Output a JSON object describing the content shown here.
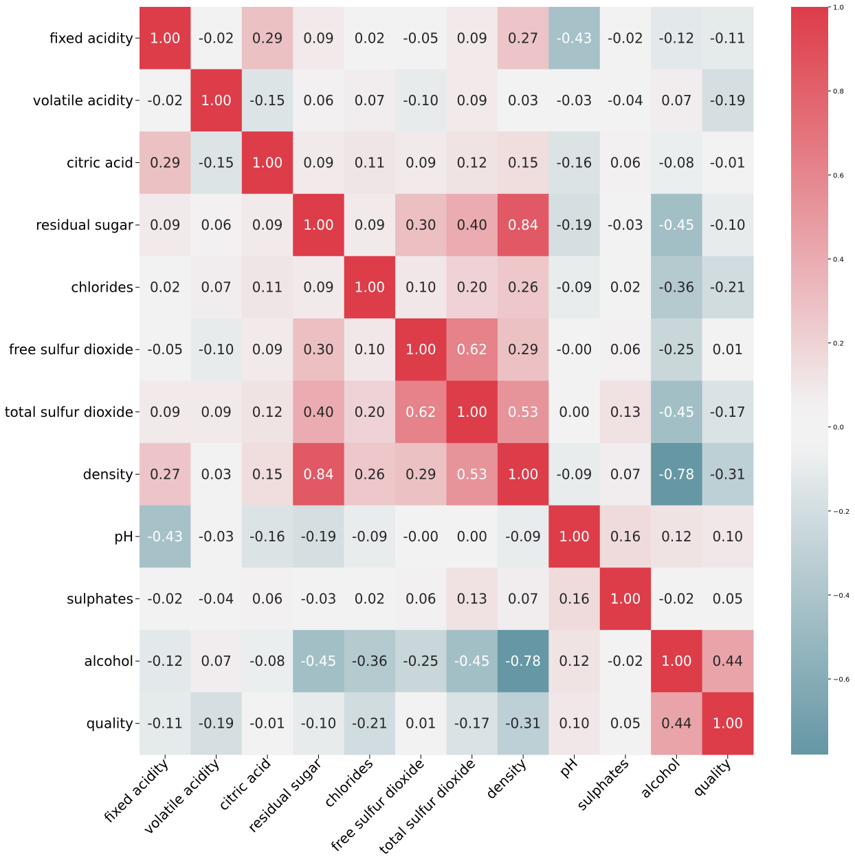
{
  "chart_data": {
    "type": "heatmap",
    "title": "",
    "xlabel": "",
    "ylabel": "",
    "labels": [
      "fixed acidity",
      "volatile acidity",
      "citric acid",
      "residual sugar",
      "chlorides",
      "free sulfur dioxide",
      "total sulfur dioxide",
      "density",
      "pH",
      "sulphates",
      "alcohol",
      "quality"
    ],
    "values": [
      [
        1.0,
        -0.02,
        0.29,
        0.09,
        0.02,
        -0.05,
        0.09,
        0.27,
        -0.43,
        -0.02,
        -0.12,
        -0.11
      ],
      [
        -0.02,
        1.0,
        -0.15,
        0.06,
        0.07,
        -0.1,
        0.09,
        0.03,
        -0.03,
        -0.04,
        0.07,
        -0.19
      ],
      [
        0.29,
        -0.15,
        1.0,
        0.09,
        0.11,
        0.09,
        0.12,
        0.15,
        -0.16,
        0.06,
        -0.08,
        -0.01
      ],
      [
        0.09,
        0.06,
        0.09,
        1.0,
        0.09,
        0.3,
        0.4,
        0.84,
        -0.19,
        -0.03,
        -0.45,
        -0.1
      ],
      [
        0.02,
        0.07,
        0.11,
        0.09,
        1.0,
        0.1,
        0.2,
        0.26,
        -0.09,
        0.02,
        -0.36,
        -0.21
      ],
      [
        -0.05,
        -0.1,
        0.09,
        0.3,
        0.1,
        1.0,
        0.62,
        0.29,
        -0.0,
        0.06,
        -0.25,
        0.01
      ],
      [
        0.09,
        0.09,
        0.12,
        0.4,
        0.2,
        0.62,
        1.0,
        0.53,
        0.0,
        0.13,
        -0.45,
        -0.17
      ],
      [
        0.27,
        0.03,
        0.15,
        0.84,
        0.26,
        0.29,
        0.53,
        1.0,
        -0.09,
        0.07,
        -0.78,
        -0.31
      ],
      [
        -0.43,
        -0.03,
        -0.16,
        -0.19,
        -0.09,
        -0.0,
        0.0,
        -0.09,
        1.0,
        0.16,
        0.12,
        0.1
      ],
      [
        -0.02,
        -0.04,
        0.06,
        -0.03,
        0.02,
        0.06,
        0.13,
        0.07,
        0.16,
        1.0,
        -0.02,
        0.05
      ],
      [
        -0.12,
        0.07,
        -0.08,
        -0.45,
        -0.36,
        -0.25,
        -0.45,
        -0.78,
        0.12,
        -0.02,
        1.0,
        0.44
      ],
      [
        -0.11,
        -0.19,
        -0.01,
        -0.1,
        -0.21,
        0.01,
        -0.17,
        -0.31,
        0.1,
        0.05,
        0.44,
        1.0
      ]
    ],
    "annotation_format": "0.00",
    "colorbar": {
      "range": [
        -0.78,
        1.0
      ],
      "ticks": [
        "−0.6",
        "−0.4",
        "−0.2",
        "0.0",
        "0.2",
        "0.4",
        "0.6",
        "0.8",
        "1.0"
      ],
      "tick_values": [
        -0.6,
        -0.4,
        -0.2,
        0.0,
        0.2,
        0.4,
        0.6,
        0.8,
        1.0
      ]
    },
    "colormap": {
      "negative": "#3d7d8e",
      "center": "#f2f2f2",
      "positive": "#dd3c49"
    },
    "text_colors": {
      "dark": "#262626",
      "light": "#ffffff"
    }
  }
}
